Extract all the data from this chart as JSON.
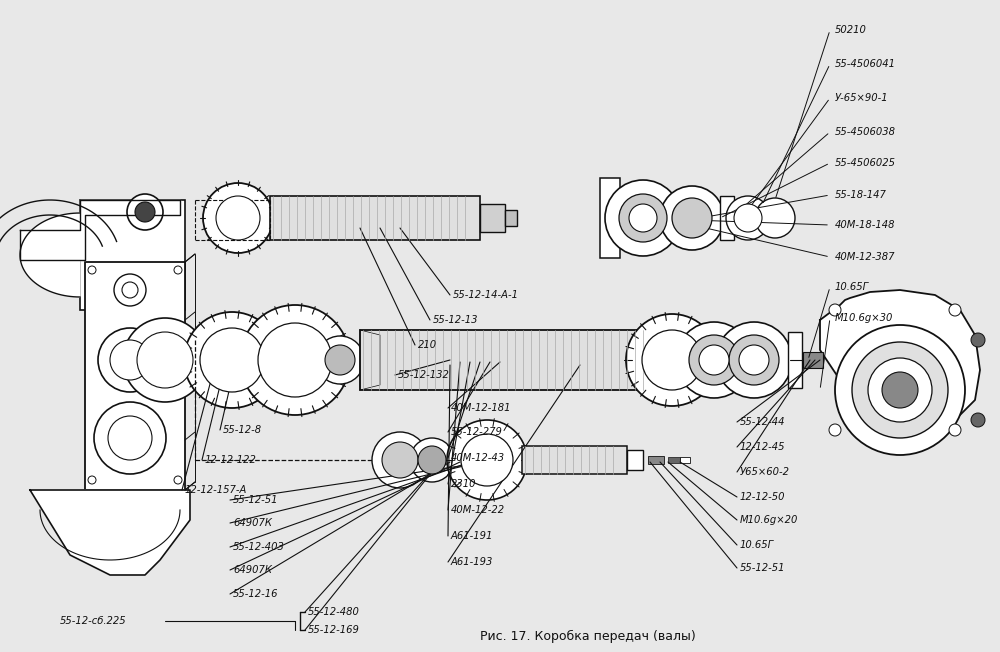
{
  "title": "Рис. 17. Коробка передач (валы)",
  "bg_color": "#e8e8e8",
  "line_color": "#111111",
  "text_color": "#111111",
  "right_labels": [
    "50210",
    "55-4506041",
    "У-65×90-1",
    "55-4506038",
    "55-4506025",
    "55-18-147",
    "40М-18-148",
    "40М-12-387",
    "10.65Г",
    "М10.6g×30"
  ],
  "mid_upper_labels": [
    "55-12-14-А-1",
    "55-12-13",
    "210",
    "55-12-132"
  ],
  "mid_center_labels": [
    "40М-12-181",
    "55-12-279",
    "40М-12-43",
    "2310",
    "40М-12-22",
    "А61-191",
    "А61-193"
  ],
  "left_labels": [
    "55-12-8",
    "12-12-122",
    "12-12-157-А"
  ],
  "bottom_left_labels": [
    "55-12-51",
    "64907К",
    "55-12-403",
    "64907К",
    "55-12-16"
  ],
  "bottom_bracket_labels": [
    "55-12-480",
    "55-12-169"
  ],
  "bracket_label": "55-12-сб.225",
  "right_bottom_labels": [
    "55-12-44",
    "12-12-45",
    "У65×60-2",
    "12-12-50",
    "М10.6g×20",
    "10.65Г",
    "55-12-51"
  ]
}
